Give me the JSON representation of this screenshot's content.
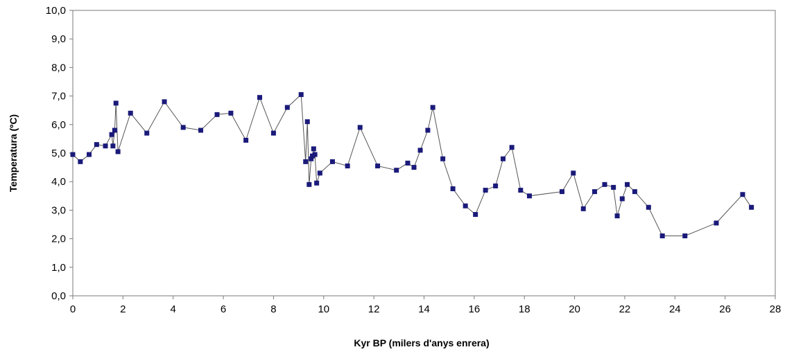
{
  "chart_data": {
    "type": "line",
    "xlabel": "Kyr BP (milers d'anys enrera)",
    "ylabel": "Temperatura (ºC)",
    "xlim": [
      0,
      28
    ],
    "ylim": [
      0,
      10
    ],
    "xticks": [
      0,
      2,
      4,
      6,
      8,
      10,
      12,
      14,
      16,
      18,
      20,
      22,
      24,
      26,
      28
    ],
    "xtick_labels": [
      "0",
      "2",
      "4",
      "6",
      "8",
      "10",
      "12",
      "14",
      "16",
      "18",
      "20",
      "22",
      "24",
      "26",
      "28"
    ],
    "yticks": [
      0,
      1,
      2,
      3,
      4,
      5,
      6,
      7,
      8,
      9,
      10
    ],
    "ytick_labels": [
      "0,0",
      "1,0",
      "2,0",
      "3,0",
      "4,0",
      "5,0",
      "6,0",
      "7,0",
      "8,0",
      "9,0",
      "10,0"
    ],
    "grid": false,
    "legend": "none",
    "colors": {
      "series": "#1a1a7a",
      "line": "#555555",
      "axis": "#777777"
    },
    "series": [
      {
        "x": [
          0.0,
          0.3,
          0.65,
          0.95,
          1.3,
          1.55,
          1.6,
          1.67,
          1.72,
          1.8,
          2.3,
          2.95,
          3.65,
          4.4,
          5.1,
          5.75,
          6.3,
          6.9,
          7.45,
          8.0,
          8.55,
          9.1,
          9.28,
          9.35,
          9.42,
          9.5,
          9.55,
          9.6,
          9.65,
          9.72,
          9.85,
          10.35,
          10.95,
          11.45,
          12.15,
          12.9,
          13.35,
          13.6,
          13.85,
          14.15,
          14.35,
          14.75,
          15.15,
          15.65,
          16.05,
          16.45,
          16.85,
          17.15,
          17.5,
          17.85,
          18.2,
          19.5,
          19.95,
          20.35,
          20.8,
          21.2,
          21.55,
          21.7,
          21.9,
          22.1,
          22.4,
          22.95,
          23.5,
          24.4,
          25.65,
          26.7,
          27.05
        ],
        "y": [
          4.95,
          4.7,
          4.95,
          5.3,
          5.25,
          5.65,
          5.25,
          5.8,
          6.75,
          5.05,
          6.4,
          5.7,
          6.8,
          5.9,
          5.8,
          6.35,
          6.4,
          5.45,
          6.95,
          5.7,
          6.6,
          7.05,
          4.7,
          6.1,
          3.9,
          4.8,
          4.9,
          5.15,
          4.95,
          3.95,
          4.3,
          4.7,
          4.55,
          5.9,
          4.55,
          4.4,
          4.65,
          4.5,
          5.1,
          5.8,
          6.6,
          4.8,
          3.75,
          3.15,
          2.85,
          3.7,
          3.85,
          4.8,
          5.2,
          3.7,
          3.5,
          3.65,
          4.3,
          3.05,
          3.65,
          3.9,
          3.8,
          2.8,
          3.4,
          3.9,
          3.65,
          3.1,
          2.1,
          2.1,
          2.55,
          3.55,
          3.1
        ]
      }
    ]
  }
}
